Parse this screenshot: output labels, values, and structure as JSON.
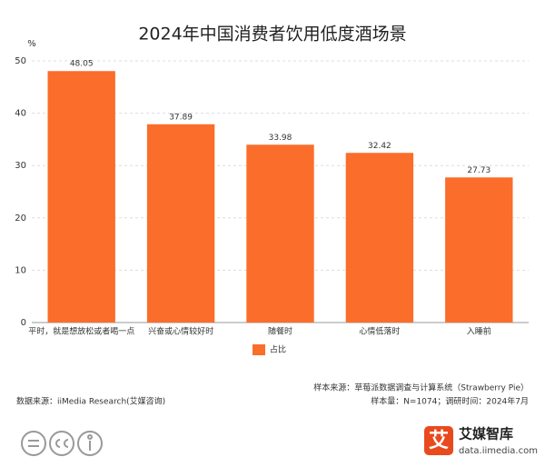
{
  "chart_data": {
    "type": "bar",
    "title": "2024年中国消费者饮用低度酒场景",
    "y_unit": "%",
    "categories": [
      "平时，就是想放松或者喝一点",
      "兴奋或心情较好时",
      "随餐时",
      "心情低落时",
      "入睡前"
    ],
    "series": [
      {
        "name": "占比",
        "color": "#fb6d2b",
        "values": [
          48.05,
          37.89,
          33.98,
          32.42,
          27.73
        ]
      }
    ],
    "ylim": [
      0,
      50
    ],
    "yticks": [
      0,
      10,
      20,
      30,
      40,
      50
    ],
    "grid": true,
    "legend": "bottom"
  },
  "footer": {
    "sample_source": "样本来源：草莓派数据调查与计算系统（Strawberry Pie）",
    "sample_size": "样本量：N=1074；调研时间：2024年7月",
    "data_source": "数据来源：iiMedia Research(艾媒咨询)"
  },
  "logo": {
    "mark": "艾",
    "name": "艾媒智库",
    "url": "data.iimedia.com"
  }
}
